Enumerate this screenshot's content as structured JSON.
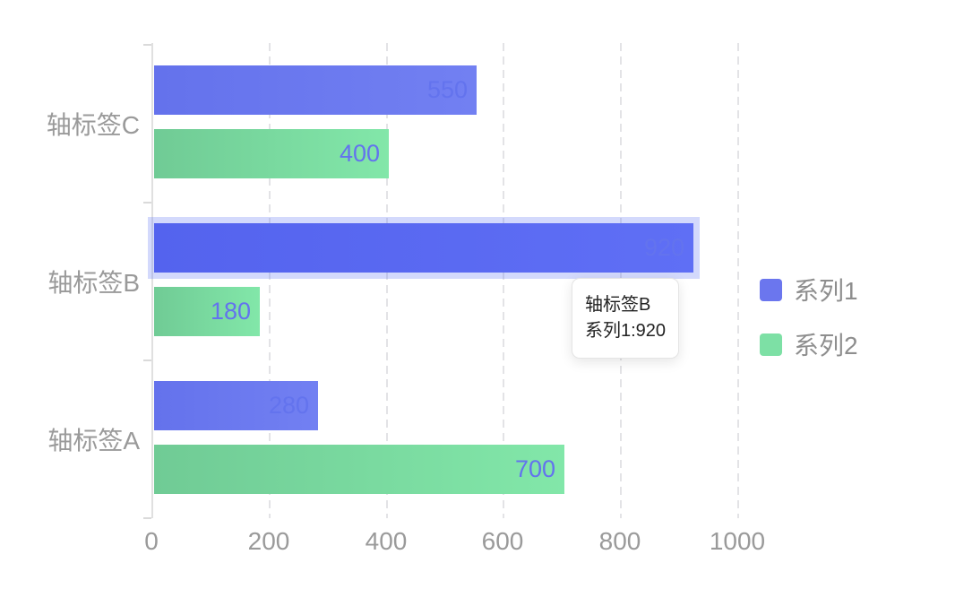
{
  "chart_data": {
    "type": "bar",
    "orientation": "horizontal",
    "categories": [
      "轴标签C",
      "轴标签B",
      "轴标签A"
    ],
    "series": [
      {
        "name": "系列1",
        "values": [
          550,
          920,
          280
        ],
        "legend_color": "#6b76ee",
        "bar_gradient": [
          "#6472ec",
          "#7280f2"
        ]
      },
      {
        "name": "系列2",
        "values": [
          400,
          180,
          700
        ],
        "legend_color": "#7de0a5",
        "bar_gradient": [
          "#70cb95",
          "#82e7a9"
        ]
      }
    ],
    "xlim": [
      0,
      1000
    ],
    "x_ticks": [
      0,
      200,
      400,
      600,
      800,
      1000
    ],
    "grid": "vertical-dashed",
    "legend_position": "right-middle",
    "value_label_position": "inside-right",
    "value_label_color": "#6373ee",
    "highlight": {
      "category": "轴标签B",
      "series": "系列1",
      "value": 920,
      "bar_color": "#5463ee",
      "halo_color": "rgba(110,128,244,0.30)"
    }
  },
  "tooltip": {
    "title": "轴标签B",
    "content": "系列1:920"
  },
  "axis": {
    "label_color": "#9a9a9a",
    "line_color": "#e0e0e0",
    "grid_color": "#e3e3e6"
  }
}
